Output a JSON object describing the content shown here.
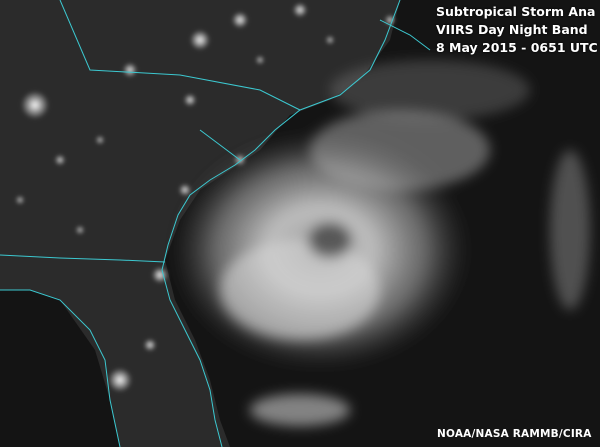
{
  "image": {
    "title_lines": [
      "Subtropical Storm Ana",
      "VIIRS Day Night Band",
      "8 May 2015 - 0651 UTC"
    ],
    "credit": "NOAA/NASA  RAMMB/CIRA",
    "colors": {
      "coastline": "#3cc8d0",
      "land": "#2a2a2a",
      "ocean": "#121212",
      "clouds": "#d8d8d8",
      "city_lights": "#ffffff"
    }
  }
}
